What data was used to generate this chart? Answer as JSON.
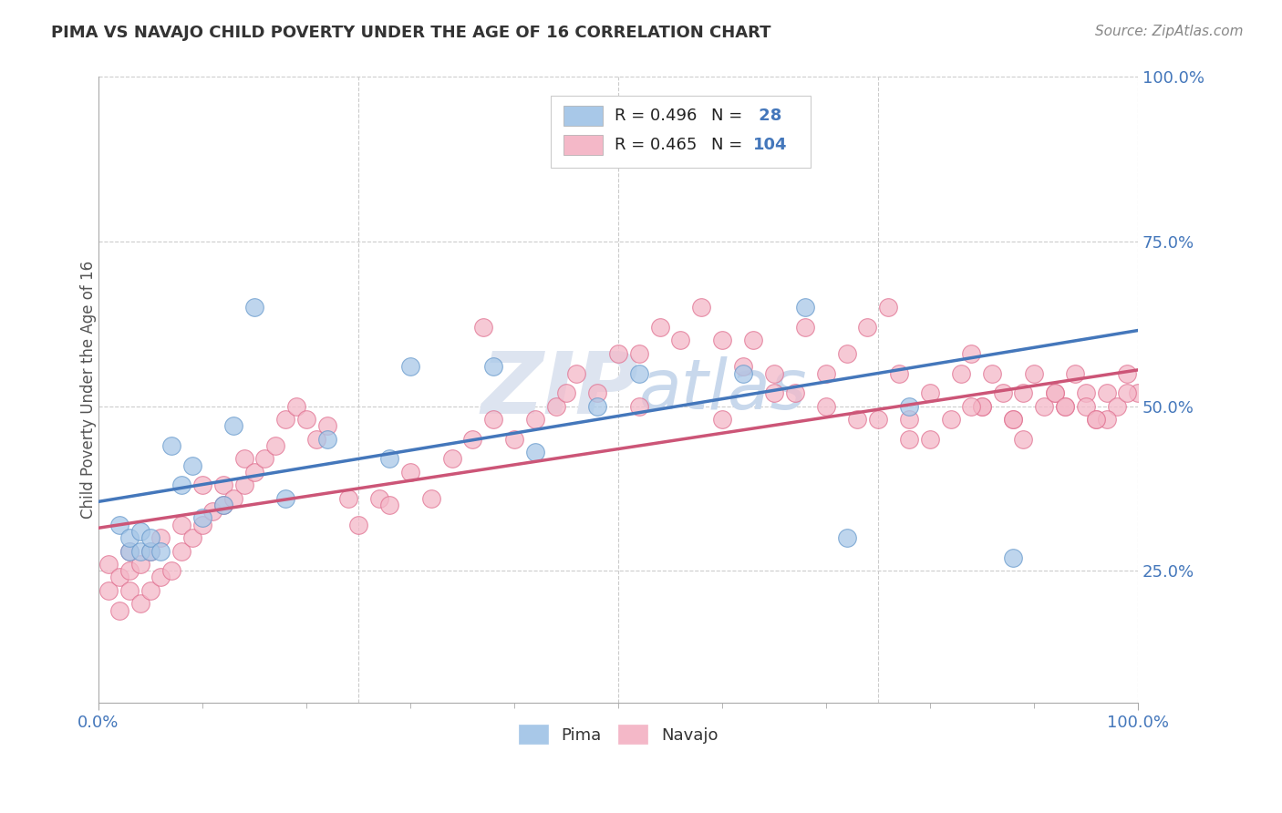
{
  "title": "PIMA VS NAVAJO CHILD POVERTY UNDER THE AGE OF 16 CORRELATION CHART",
  "source": "Source: ZipAtlas.com",
  "ylabel": "Child Poverty Under the Age of 16",
  "watermark_zip": "ZIP",
  "watermark_atlas": "atlas",
  "legend_line1": "R = 0.496   N =  28",
  "legend_line2": "R = 0.465   N = 104",
  "color_pima": "#a8c8e8",
  "color_navajo": "#f4b8c8",
  "edge_pima": "#6699cc",
  "edge_navajo": "#e07090",
  "line_color_pima": "#4477bb",
  "line_color_navajo": "#cc5577",
  "ytick_color": "#4477bb",
  "xtick_color": "#4477bb",
  "bg_color": "#ffffff",
  "grid_color": "#cccccc",
  "title_color": "#333333",
  "source_color": "#888888",
  "pima_x": [
    0.02,
    0.03,
    0.03,
    0.04,
    0.04,
    0.05,
    0.05,
    0.06,
    0.07,
    0.08,
    0.09,
    0.1,
    0.12,
    0.13,
    0.15,
    0.18,
    0.22,
    0.28,
    0.3,
    0.38,
    0.42,
    0.48,
    0.52,
    0.62,
    0.68,
    0.72,
    0.78,
    0.88
  ],
  "pima_y": [
    0.32,
    0.28,
    0.3,
    0.28,
    0.31,
    0.28,
    0.3,
    0.28,
    0.44,
    0.38,
    0.41,
    0.33,
    0.35,
    0.47,
    0.65,
    0.36,
    0.45,
    0.42,
    0.56,
    0.56,
    0.43,
    0.5,
    0.55,
    0.55,
    0.65,
    0.3,
    0.5,
    0.27
  ],
  "navajo_x": [
    0.01,
    0.01,
    0.02,
    0.02,
    0.03,
    0.03,
    0.03,
    0.04,
    0.04,
    0.05,
    0.05,
    0.06,
    0.06,
    0.07,
    0.08,
    0.08,
    0.09,
    0.1,
    0.1,
    0.11,
    0.12,
    0.12,
    0.13,
    0.14,
    0.14,
    0.15,
    0.16,
    0.17,
    0.18,
    0.19,
    0.2,
    0.21,
    0.22,
    0.24,
    0.25,
    0.27,
    0.28,
    0.3,
    0.32,
    0.34,
    0.36,
    0.37,
    0.4,
    0.42,
    0.44,
    0.46,
    0.48,
    0.5,
    0.52,
    0.54,
    0.56,
    0.58,
    0.6,
    0.62,
    0.63,
    0.65,
    0.67,
    0.68,
    0.7,
    0.72,
    0.74,
    0.76,
    0.77,
    0.78,
    0.8,
    0.82,
    0.83,
    0.84,
    0.85,
    0.86,
    0.87,
    0.88,
    0.89,
    0.9,
    0.91,
    0.92,
    0.93,
    0.94,
    0.95,
    0.96,
    0.97,
    0.98,
    0.99,
    1.0,
    0.38,
    0.45,
    0.52,
    0.6,
    0.65,
    0.7,
    0.75,
    0.8,
    0.85,
    0.88,
    0.92,
    0.95,
    0.97,
    0.99,
    0.93,
    0.96,
    0.89,
    0.84,
    0.78,
    0.73
  ],
  "navajo_y": [
    0.22,
    0.26,
    0.19,
    0.24,
    0.22,
    0.25,
    0.28,
    0.2,
    0.26,
    0.22,
    0.28,
    0.24,
    0.3,
    0.25,
    0.28,
    0.32,
    0.3,
    0.32,
    0.38,
    0.34,
    0.35,
    0.38,
    0.36,
    0.38,
    0.42,
    0.4,
    0.42,
    0.44,
    0.48,
    0.5,
    0.48,
    0.45,
    0.47,
    0.36,
    0.32,
    0.36,
    0.35,
    0.4,
    0.36,
    0.42,
    0.45,
    0.62,
    0.45,
    0.48,
    0.5,
    0.55,
    0.52,
    0.58,
    0.58,
    0.62,
    0.6,
    0.65,
    0.6,
    0.56,
    0.6,
    0.55,
    0.52,
    0.62,
    0.55,
    0.58,
    0.62,
    0.65,
    0.55,
    0.48,
    0.45,
    0.48,
    0.55,
    0.58,
    0.5,
    0.55,
    0.52,
    0.48,
    0.52,
    0.55,
    0.5,
    0.52,
    0.5,
    0.55,
    0.52,
    0.48,
    0.52,
    0.5,
    0.55,
    0.52,
    0.48,
    0.52,
    0.5,
    0.48,
    0.52,
    0.5,
    0.48,
    0.52,
    0.5,
    0.48,
    0.52,
    0.5,
    0.48,
    0.52,
    0.5,
    0.48,
    0.45,
    0.5,
    0.45,
    0.48
  ],
  "xlim": [
    0.0,
    1.0
  ],
  "ylim": [
    0.05,
    1.0
  ],
  "pima_line_x0": 0.0,
  "pima_line_y0": 0.355,
  "pima_line_x1": 1.0,
  "pima_line_y1": 0.615,
  "navajo_line_x0": 0.0,
  "navajo_line_y0": 0.315,
  "navajo_line_x1": 1.0,
  "navajo_line_y1": 0.555
}
